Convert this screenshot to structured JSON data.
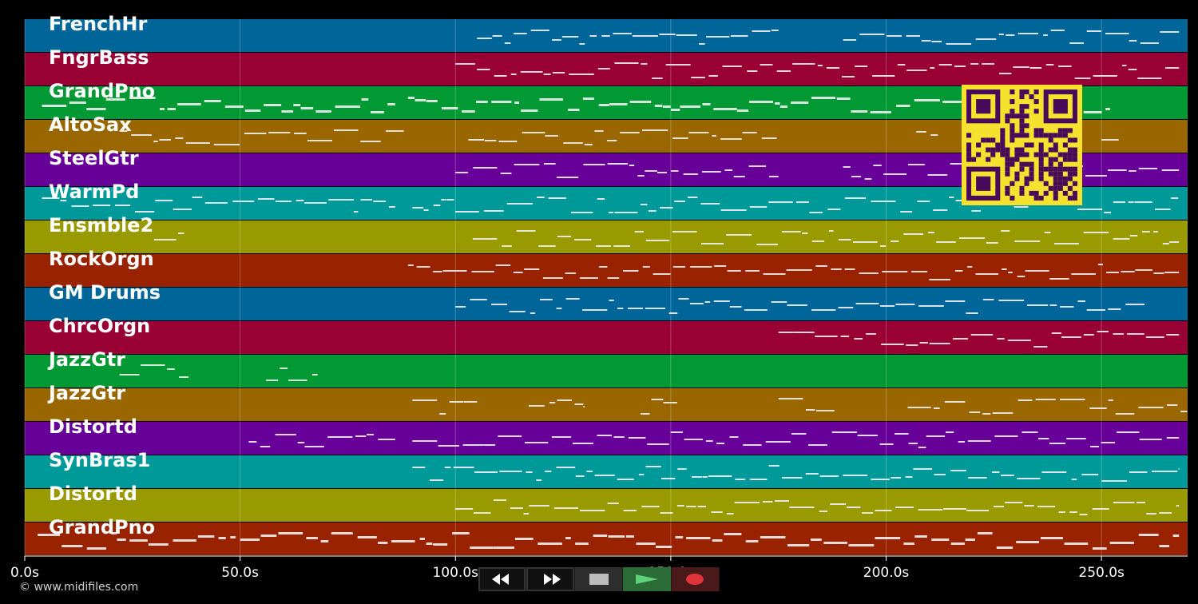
{
  "tracks": [
    {
      "name": "FrenchHr",
      "color": "#006699"
    },
    {
      "name": "FngrBass",
      "color": "#990033"
    },
    {
      "name": "GrandPno",
      "color": "#009933"
    },
    {
      "name": "AltoSax",
      "color": "#996600"
    },
    {
      "name": "SteelGtr",
      "color": "#660099"
    },
    {
      "name": "WarmPd",
      "color": "#009999"
    },
    {
      "name": "Ensmble2",
      "color": "#999900"
    },
    {
      "name": "RockOrgn",
      "color": "#992200"
    },
    {
      "name": "GM Drums",
      "color": "#006699"
    },
    {
      "name": "ChrcOrgn",
      "color": "#990033"
    },
    {
      "name": "JazzGtr",
      "color": "#009933"
    },
    {
      "name": "JazzGtr",
      "color": "#996600"
    },
    {
      "name": "Distortd",
      "color": "#660099"
    },
    {
      "name": "SynBras1",
      "color": "#009999"
    },
    {
      "name": "Distortd",
      "color": "#999900"
    },
    {
      "name": "GrandPno",
      "color": "#992200"
    }
  ],
  "timeline": {
    "duration_s": 270,
    "ticks": [
      "0.0s",
      "50.0s",
      "100.0s",
      "150.0s",
      "200.0s",
      "250.0s"
    ],
    "tick_values": [
      0,
      50,
      100,
      150,
      200,
      250
    ]
  },
  "transport": {
    "rewind_icon": "rewind-icon",
    "fast_forward_icon": "fast-forward-icon",
    "stop_icon": "stop-icon",
    "play_icon": "play-icon",
    "record_icon": "record-icon"
  },
  "credit": "© www.midifiles.com"
}
